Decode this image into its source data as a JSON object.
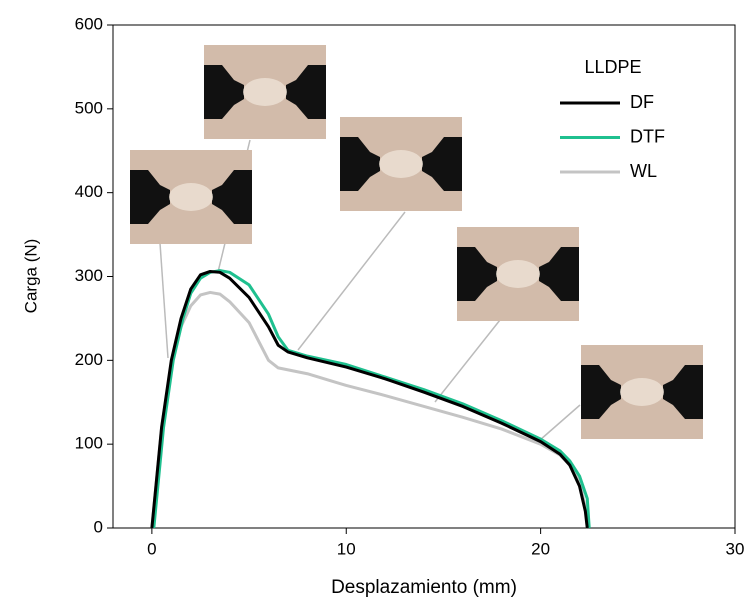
{
  "chart_data": {
    "type": "line",
    "x_label": "Desplazamiento (mm)",
    "y_label": "Carga (N)",
    "legend_title": "LLDPE",
    "legend": "upper right",
    "xlim": [
      -2,
      30
    ],
    "xticks": [
      0,
      10,
      20,
      30
    ],
    "ylim": [
      0,
      600
    ],
    "yticks": [
      0,
      100,
      200,
      300,
      400,
      500,
      600
    ],
    "series": [
      {
        "name": "DF",
        "color": "#000000",
        "x": [
          0,
          0.5,
          1,
          1.5,
          2,
          2.5,
          3,
          3.5,
          4,
          5,
          6,
          6.5,
          7,
          8,
          10,
          12,
          14,
          16,
          18,
          20,
          21,
          21.5,
          22,
          22.3,
          22.4
        ],
        "values": [
          0,
          120,
          200,
          250,
          285,
          302,
          306,
          305,
          298,
          275,
          240,
          218,
          210,
          203,
          192,
          178,
          162,
          145,
          125,
          103,
          88,
          75,
          50,
          20,
          0
        ]
      },
      {
        "name": "DTF",
        "color": "#1fc08f",
        "x": [
          0.1,
          0.6,
          1.1,
          1.6,
          2,
          2.5,
          3,
          3.5,
          4,
          5,
          6,
          6.5,
          7,
          8,
          10,
          12,
          14,
          16,
          18,
          20,
          21,
          21.5,
          22,
          22.4,
          22.5
        ],
        "values": [
          0,
          120,
          200,
          250,
          280,
          298,
          305,
          307,
          305,
          290,
          255,
          228,
          212,
          205,
          195,
          180,
          165,
          148,
          128,
          106,
          92,
          80,
          62,
          35,
          0
        ]
      },
      {
        "name": "WL",
        "color": "#c4c4c4",
        "x": [
          0,
          0.5,
          1,
          1.5,
          2,
          2.5,
          3,
          3.5,
          4,
          5,
          6,
          6.5,
          8,
          10,
          12,
          14,
          16,
          18,
          20,
          21,
          21.5,
          22,
          22.3,
          22.4
        ],
        "values": [
          0,
          120,
          195,
          240,
          265,
          278,
          281,
          279,
          270,
          245,
          200,
          191,
          184,
          170,
          158,
          145,
          132,
          118,
          100,
          87,
          75,
          55,
          25,
          0
        ]
      }
    ]
  }
}
